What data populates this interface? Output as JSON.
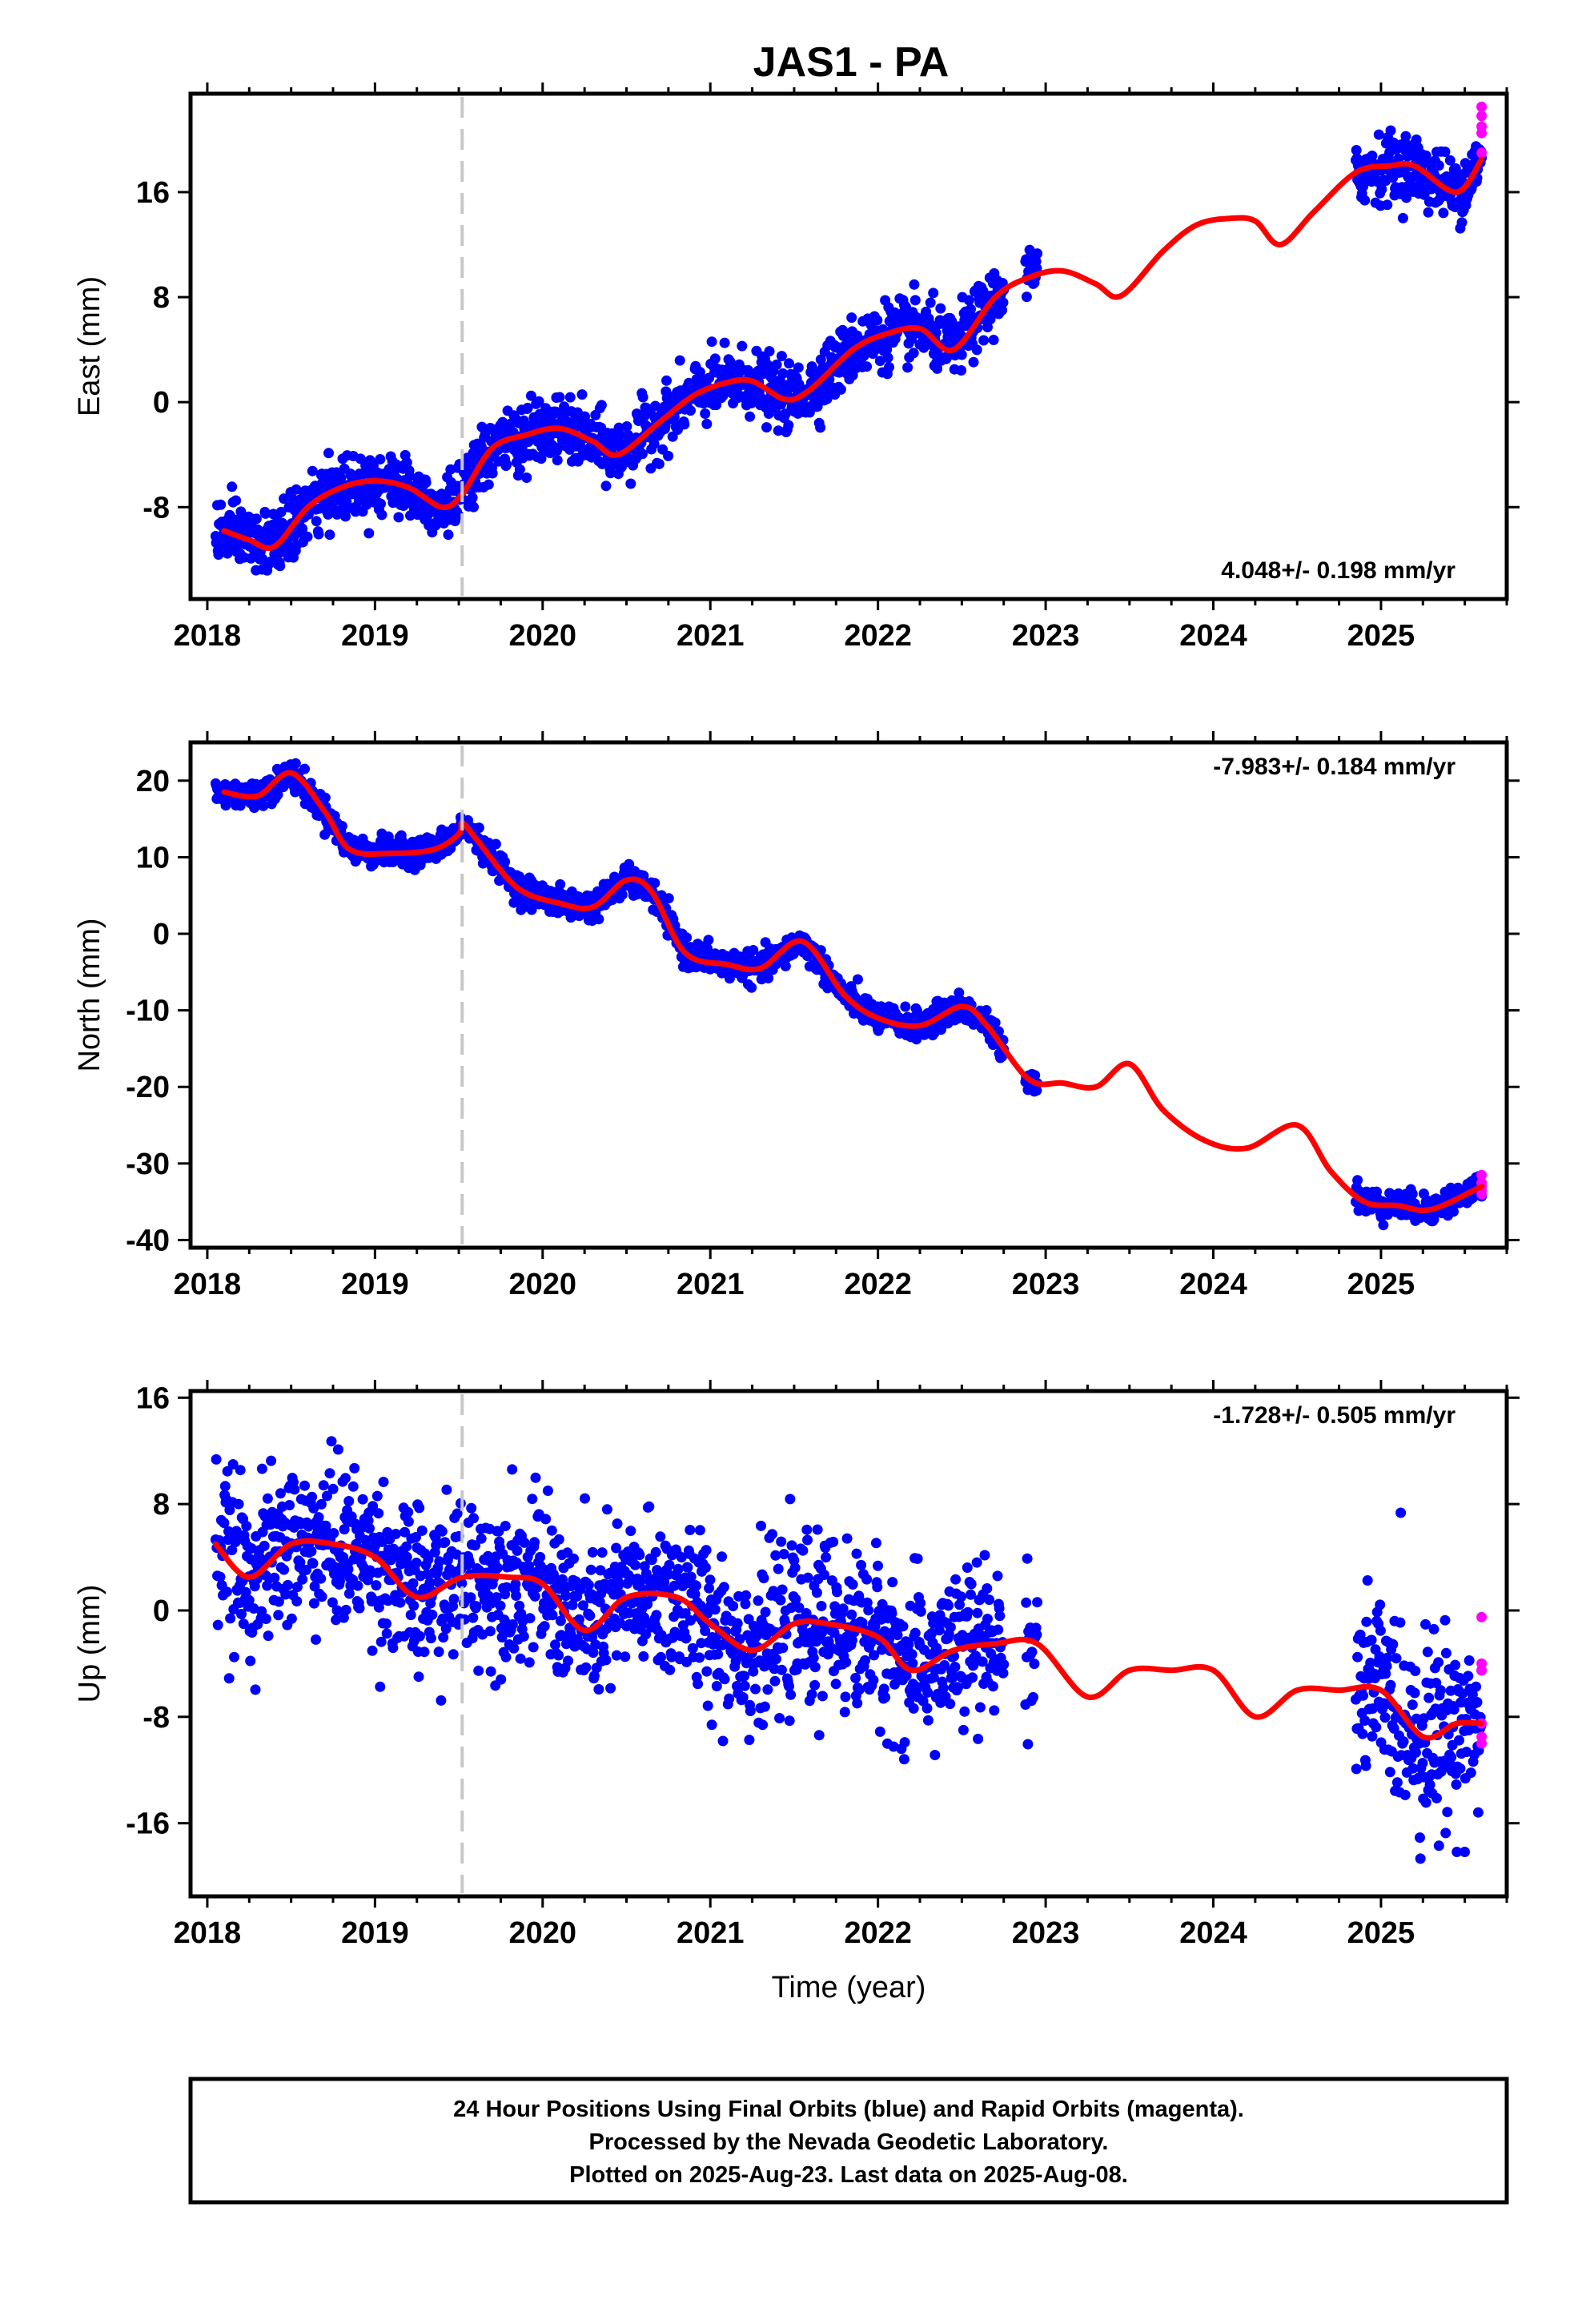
{
  "chart_data": [
    {
      "type": "scatter",
      "component": "east",
      "title": "JAS1 - PA",
      "xlabel": "",
      "ylabel": "East (mm)",
      "xlim": [
        2017.9,
        2025.75
      ],
      "ylim": [
        -15,
        23.5
      ],
      "xticks": [
        "2018",
        "2019",
        "2020",
        "2021",
        "2022",
        "2023",
        "2024",
        "2025"
      ],
      "yticks": [
        -8,
        0,
        8,
        16
      ],
      "rate_label": "4.048+/- 0.198 mm/yr",
      "rate_position": "bottom-right",
      "event_line_x": 2019.52,
      "final_orbits_color": "#0000ff",
      "rapid_orbits_color": "#ff00ff",
      "model_color": "#ff0000",
      "model": {
        "x": [
          2018.1,
          2018.25,
          2018.4,
          2018.6,
          2018.8,
          2019.0,
          2019.2,
          2019.4,
          2019.52,
          2019.7,
          2019.9,
          2020.1,
          2020.3,
          2020.45,
          2020.7,
          2020.9,
          2021.1,
          2021.25,
          2021.45,
          2021.6,
          2021.85,
          2022.05,
          2022.25,
          2022.45,
          2022.7,
          2022.9,
          2023.1,
          2023.3,
          2023.45,
          2023.7,
          2023.9,
          2024.1,
          2024.25,
          2024.4,
          2024.6,
          2024.85,
          2025.05,
          2025.2,
          2025.45,
          2025.6
        ],
        "y": [
          -9.8,
          -10.5,
          -11.0,
          -8.0,
          -6.5,
          -6.0,
          -6.5,
          -8.0,
          -7.0,
          -3.5,
          -2.5,
          -2.0,
          -3.0,
          -4.0,
          -1.5,
          0.5,
          1.5,
          1.6,
          0.2,
          1.0,
          4.0,
          5.2,
          5.6,
          4.0,
          8.0,
          9.5,
          10.0,
          9.0,
          8.1,
          11.5,
          13.5,
          14.0,
          13.8,
          12.0,
          14.5,
          17.5,
          18.0,
          18.0,
          16.0,
          18.5
        ]
      },
      "final_orbits": {
        "segments": [
          {
            "x_start": 2018.05,
            "x_end": 2022.75,
            "scatter_mm": 1.2
          },
          {
            "x_start": 2022.88,
            "x_end": 2022.95,
            "scatter_mm": 1.0
          },
          {
            "x_start": 2024.85,
            "x_end": 2025.6,
            "scatter_mm": 1.2
          }
        ]
      },
      "rapid_orbits": {
        "x": [
          2025.6,
          2025.6,
          2025.6,
          2025.6,
          2025.6
        ],
        "y": [
          22.5,
          21.8,
          21.0,
          20.5,
          19.0
        ]
      }
    },
    {
      "type": "scatter",
      "component": "north",
      "xlabel": "",
      "ylabel": "North (mm)",
      "xlim": [
        2017.9,
        2025.75
      ],
      "ylim": [
        -41,
        25
      ],
      "xticks": [
        "2018",
        "2019",
        "2020",
        "2021",
        "2022",
        "2023",
        "2024",
        "2025"
      ],
      "yticks": [
        -40,
        -30,
        -20,
        -10,
        0,
        10,
        20
      ],
      "rate_label": "-7.983+/- 0.184 mm/yr",
      "rate_position": "top-right",
      "event_line_x": 2019.52,
      "final_orbits_color": "#0000ff",
      "rapid_orbits_color": "#ff00ff",
      "model_color": "#ff0000",
      "model": {
        "x": [
          2018.1,
          2018.3,
          2018.5,
          2018.7,
          2018.85,
          2019.1,
          2019.35,
          2019.5,
          2019.52,
          2019.6,
          2019.85,
          2020.1,
          2020.3,
          2020.5,
          2020.65,
          2020.85,
          2021.1,
          2021.3,
          2021.55,
          2021.8,
          2022.0,
          2022.25,
          2022.5,
          2022.65,
          2022.9,
          2023.1,
          2023.3,
          2023.5,
          2023.7,
          2023.95,
          2024.2,
          2024.5,
          2024.7,
          2024.9,
          2025.1,
          2025.3,
          2025.6
        ],
        "y": [
          18.5,
          18.0,
          21.0,
          16.0,
          11.0,
          10.5,
          11.0,
          13.0,
          14.5,
          12.5,
          6.0,
          4.0,
          3.5,
          7.0,
          5.5,
          -2.5,
          -4.0,
          -4.5,
          -1.0,
          -8.0,
          -11.0,
          -12.0,
          -9.5,
          -12.0,
          -19.0,
          -19.5,
          -20.0,
          -17.0,
          -23.0,
          -27.0,
          -28.0,
          -25.0,
          -31.0,
          -35.0,
          -35.5,
          -36.0,
          -33.0
        ]
      },
      "final_orbits": {
        "segments": [
          {
            "x_start": 2018.05,
            "x_end": 2022.75,
            "scatter_mm": 0.9
          },
          {
            "x_start": 2022.88,
            "x_end": 2022.95,
            "scatter_mm": 0.8
          },
          {
            "x_start": 2024.85,
            "x_end": 2025.6,
            "scatter_mm": 0.9
          }
        ]
      },
      "rapid_orbits": {
        "x": [
          2025.6,
          2025.6,
          2025.6,
          2025.6,
          2025.6
        ],
        "y": [
          -31.5,
          -32.5,
          -33.0,
          -33.5,
          -34.0
        ]
      }
    },
    {
      "type": "scatter",
      "component": "up",
      "xlabel": "Time (year)",
      "ylabel": "Up (mm)",
      "xlim": [
        2017.9,
        2025.75
      ],
      "ylim": [
        -21.5,
        16.5
      ],
      "xticks": [
        "2018",
        "2019",
        "2020",
        "2021",
        "2022",
        "2023",
        "2024",
        "2025"
      ],
      "yticks": [
        -16,
        -8,
        0,
        8,
        16
      ],
      "rate_label": "-1.728+/- 0.505 mm/yr",
      "rate_position": "top-right",
      "event_line_x": 2019.52,
      "final_orbits_color": "#0000ff",
      "rapid_orbits_color": "#ff00ff",
      "model_color": "#ff0000",
      "model": {
        "x": [
          2018.05,
          2018.25,
          2018.5,
          2018.75,
          2019.0,
          2019.25,
          2019.52,
          2019.8,
          2020.0,
          2020.25,
          2020.5,
          2020.8,
          2021.0,
          2021.25,
          2021.5,
          2021.7,
          2022.0,
          2022.2,
          2022.45,
          2022.7,
          2022.95,
          2023.25,
          2023.5,
          2023.75,
          2024.0,
          2024.25,
          2024.5,
          2024.75,
          2025.0,
          2025.25,
          2025.45,
          2025.6
        ],
        "y": [
          5.0,
          2.5,
          5.0,
          5.0,
          4.0,
          1.0,
          2.5,
          2.5,
          2.0,
          -1.5,
          1.0,
          1.0,
          -1.0,
          -3.0,
          -1.0,
          -1.0,
          -2.0,
          -4.5,
          -3.0,
          -2.5,
          -2.5,
          -6.5,
          -4.5,
          -4.5,
          -4.5,
          -8.0,
          -6.0,
          -6.0,
          -6.0,
          -9.5,
          -8.5,
          -8.5
        ]
      },
      "final_orbits": {
        "segments": [
          {
            "x_start": 2018.05,
            "x_end": 2022.75,
            "scatter_mm": 3.0
          },
          {
            "x_start": 2022.88,
            "x_end": 2022.95,
            "scatter_mm": 2.5
          },
          {
            "x_start": 2024.85,
            "x_end": 2025.6,
            "scatter_mm": 3.5
          }
        ]
      },
      "rapid_orbits": {
        "x": [
          2025.6,
          2025.6,
          2025.6,
          2025.6,
          2025.6,
          2025.6
        ],
        "y": [
          -0.5,
          -4.0,
          -4.5,
          -8.5,
          -9.5,
          -10.0
        ]
      }
    }
  ],
  "caption": {
    "line1": "24 Hour Positions Using Final Orbits (blue) and Rapid Orbits (magenta).",
    "line2": "Processed by the Nevada Geodetic Laboratory.",
    "line3": "Plotted on 2025-Aug-23. Last data on 2025-Aug-08."
  }
}
